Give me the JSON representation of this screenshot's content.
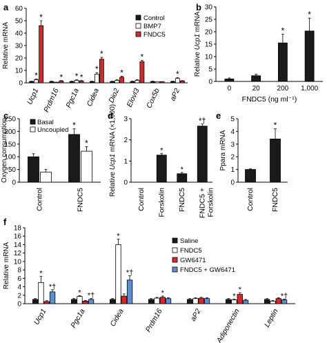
{
  "colors": {
    "control": "#1a1a1a",
    "bmp7": "#ffffff",
    "fndc5": "#d9262b",
    "gw6471": "#d9262b",
    "combo": "#5b8fd0",
    "axis": "#000000"
  },
  "chart_data": [
    {
      "panel": "a",
      "type": "bar",
      "ylabel": "Relative mRNA",
      "ylim": [
        0,
        60
      ],
      "yticks": [
        0,
        10,
        20,
        30,
        40,
        50,
        60
      ],
      "categories": [
        "Ucp1",
        "Prdm16",
        "Pgc1a",
        "Cidea",
        "Dio2",
        "Elovl3",
        "Cox5b",
        "aP2"
      ],
      "series": [
        {
          "name": "Control",
          "values": [
            1,
            1,
            1,
            1,
            1,
            1,
            1,
            1
          ],
          "errors": [
            0.3,
            0.3,
            0.3,
            0.3,
            0.3,
            0.3,
            0.3,
            0.3
          ],
          "stars": [
            false,
            false,
            false,
            false,
            false,
            false,
            false,
            false
          ]
        },
        {
          "name": "BMP7",
          "values": [
            2.5,
            0.5,
            2,
            7,
            2,
            2,
            1,
            3.5
          ],
          "errors": [
            0.5,
            0.2,
            0.4,
            1.2,
            0.4,
            0.5,
            0.2,
            0.6
          ],
          "stars": [
            true,
            false,
            true,
            true,
            false,
            false,
            false,
            true
          ]
        },
        {
          "name": "FNDC5",
          "values": [
            46,
            1.5,
            1.5,
            19,
            4.5,
            17,
            1,
            1.5
          ],
          "errors": [
            4,
            0.3,
            0.3,
            1.5,
            0.8,
            1,
            0.2,
            0.3
          ],
          "stars": [
            true,
            true,
            true,
            true,
            true,
            true,
            false,
            false
          ]
        }
      ],
      "legend": "top-right"
    },
    {
      "panel": "b",
      "type": "bar",
      "ylabel": "Relative Ucp1 mRNA",
      "xlabel": "FNDC5 (ng ml⁻¹)",
      "ylim": [
        0,
        30
      ],
      "yticks": [
        0,
        5,
        10,
        15,
        20,
        25,
        30
      ],
      "categories": [
        "0",
        "20",
        "200",
        "1,000"
      ],
      "values": [
        1,
        2.3,
        15.5,
        20.3
      ],
      "errors": [
        0.4,
        0.6,
        3.5,
        5.2
      ],
      "stars": [
        false,
        false,
        true,
        true
      ]
    },
    {
      "panel": "c",
      "type": "bar",
      "ylabel": "Oxygen consumption",
      "ylim": [
        0,
        250
      ],
      "yticks": [
        0,
        50,
        100,
        150,
        200,
        250
      ],
      "categories": [
        "Control",
        "FNDC5"
      ],
      "series": [
        {
          "name": "Basal",
          "values": [
            100,
            188
          ],
          "errors": [
            12,
            22
          ],
          "stars": [
            false,
            true
          ]
        },
        {
          "name": "Uncoupled",
          "values": [
            40,
            122
          ],
          "errors": [
            10,
            18
          ],
          "stars": [
            false,
            true
          ]
        }
      ],
      "legend": "top-left"
    },
    {
      "panel": "d",
      "type": "bar",
      "ylabel": "Relative Ucp1 mRNA (×1,000)",
      "ylim": [
        0,
        3
      ],
      "yticks": [
        0,
        1,
        2,
        3
      ],
      "categories": [
        "Control",
        "Forskolin",
        "FNDC5",
        "FNDC5 + Forskolin"
      ],
      "values": [
        0,
        1.28,
        0.4,
        2.65
      ],
      "errors": [
        0,
        0.08,
        0.06,
        0.1
      ],
      "marks": [
        "",
        "*",
        "*",
        "*†"
      ]
    },
    {
      "panel": "e",
      "type": "bar",
      "ylabel": "Ppara mRNA",
      "ylim": [
        0,
        5
      ],
      "yticks": [
        0,
        1,
        2,
        3,
        4,
        5
      ],
      "categories": [
        "Control",
        "FNDC5"
      ],
      "values": [
        1,
        3.4
      ],
      "errors": [
        0.05,
        0.8
      ],
      "stars": [
        false,
        true
      ]
    },
    {
      "panel": "f",
      "type": "bar",
      "ylabel": "Relative mRNA",
      "ylim": [
        0,
        18
      ],
      "yticks": [
        0,
        2,
        4,
        6,
        8,
        10,
        12,
        14,
        16,
        18
      ],
      "categories": [
        "Ucp1",
        "Pgc1a",
        "Cidea",
        "Prdm16",
        "aP2",
        "Adiponectin",
        "Leptin"
      ],
      "series": [
        {
          "name": "Saline",
          "values": [
            1,
            1,
            1,
            1,
            1,
            1,
            1
          ],
          "errors": [
            0.2,
            0.2,
            0.2,
            0.2,
            0.2,
            0.2,
            0.2
          ]
        },
        {
          "name": "FNDC5",
          "values": [
            5,
            1.7,
            14,
            1.3,
            1.2,
            0.9,
            0.6
          ],
          "errors": [
            1.5,
            0.2,
            1.3,
            0.2,
            0.2,
            0.2,
            0.15
          ]
        },
        {
          "name": "GW6471",
          "values": [
            0.5,
            0.6,
            1.8,
            1.5,
            1.3,
            2.2,
            1.2
          ],
          "errors": [
            0.2,
            0.15,
            0.5,
            0.3,
            0.2,
            0.4,
            0.2
          ]
        },
        {
          "name": "FNDC5 + GW6471",
          "values": [
            2.8,
            1,
            5.6,
            1.2,
            1.2,
            0.8,
            0.9
          ],
          "errors": [
            0.5,
            0.2,
            1,
            0.2,
            0.2,
            0.2,
            0.2
          ]
        }
      ],
      "marks": [
        [
          "",
          "*",
          "",
          "*†"
        ],
        [
          "",
          "*",
          "",
          "*†"
        ],
        [
          "",
          "*",
          "",
          "*†"
        ],
        [
          "",
          "",
          "*",
          ""
        ],
        [
          "",
          "",
          "",
          ""
        ],
        [
          "",
          "*",
          "*",
          ""
        ],
        [
          "",
          "",
          "",
          "*†"
        ]
      ],
      "legend": "right"
    }
  ]
}
